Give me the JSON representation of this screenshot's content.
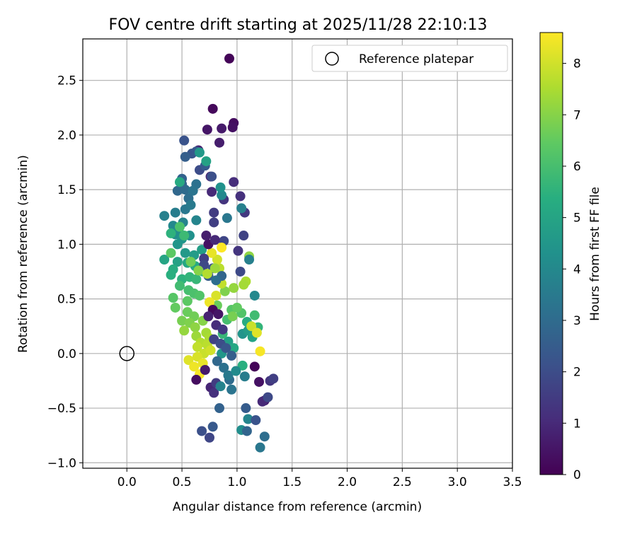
{
  "chart_data": {
    "type": "scatter",
    "title": "FOV centre drift starting at 2025/11/28 22:10:13",
    "xlabel": "Angular distance from reference (arcmin)",
    "ylabel": "Rotation from reference (arcmin)",
    "xlim": [
      -0.4,
      3.5
    ],
    "ylim": [
      -1.05,
      2.88
    ],
    "xticks": [
      "0.0",
      "0.5",
      "1.0",
      "1.5",
      "2.0",
      "2.5",
      "3.0",
      "3.5"
    ],
    "yticks": [
      "−1.0",
      "−0.5",
      "0.0",
      "0.5",
      "1.0",
      "1.5",
      "2.0",
      "2.5"
    ],
    "xtick_values": [
      0.0,
      0.5,
      1.0,
      1.5,
      2.0,
      2.5,
      3.0,
      3.5
    ],
    "ytick_values": [
      -1.0,
      -0.5,
      0.0,
      0.5,
      1.0,
      1.5,
      2.0,
      2.5
    ],
    "grid": true,
    "legend": {
      "placement": "top-right",
      "entries": [
        "Reference platepar"
      ]
    },
    "reference_point": {
      "x": 0.0,
      "y": 0.0
    },
    "colorbar": {
      "label": "Hours from first FF file",
      "colormap": "viridis",
      "range": [
        0,
        8.6
      ],
      "ticks": [
        "0",
        "1",
        "2",
        "3",
        "4",
        "5",
        "6",
        "7",
        "8"
      ],
      "tick_values": [
        0,
        1,
        2,
        3,
        4,
        5,
        6,
        7,
        8
      ]
    },
    "points": [
      {
        "x": 0.93,
        "y": 2.7,
        "c": 0.1
      },
      {
        "x": 0.78,
        "y": 2.24,
        "c": 0.2
      },
      {
        "x": 0.97,
        "y": 2.11,
        "c": 0.3
      },
      {
        "x": 0.96,
        "y": 2.07,
        "c": 0.4
      },
      {
        "x": 0.73,
        "y": 2.05,
        "c": 0.5
      },
      {
        "x": 0.86,
        "y": 2.06,
        "c": 0.6
      },
      {
        "x": 0.84,
        "y": 1.93,
        "c": 0.7
      },
      {
        "x": 0.65,
        "y": 1.86,
        "c": 0.8
      },
      {
        "x": 0.76,
        "y": 1.62,
        "c": 0.9
      },
      {
        "x": 0.77,
        "y": 1.48,
        "c": 1.0
      },
      {
        "x": 0.97,
        "y": 1.57,
        "c": 1.1
      },
      {
        "x": 1.03,
        "y": 1.44,
        "c": 1.2
      },
      {
        "x": 0.88,
        "y": 1.41,
        "c": 1.3
      },
      {
        "x": 1.07,
        "y": 1.29,
        "c": 1.4
      },
      {
        "x": 0.79,
        "y": 1.29,
        "c": 1.5
      },
      {
        "x": 0.79,
        "y": 1.2,
        "c": 1.6
      },
      {
        "x": 1.06,
        "y": 1.08,
        "c": 1.7
      },
      {
        "x": 0.88,
        "y": 1.03,
        "c": 1.8
      },
      {
        "x": 1.03,
        "y": 0.75,
        "c": 1.9
      },
      {
        "x": 0.66,
        "y": 1.68,
        "c": 2.0
      },
      {
        "x": 0.77,
        "y": 1.62,
        "c": 2.1
      },
      {
        "x": 0.52,
        "y": 1.95,
        "c": 2.2
      },
      {
        "x": 0.59,
        "y": 1.83,
        "c": 2.3
      },
      {
        "x": 0.63,
        "y": 1.85,
        "c": 2.4
      },
      {
        "x": 0.71,
        "y": 1.72,
        "c": 2.5
      },
      {
        "x": 0.53,
        "y": 1.8,
        "c": 2.6
      },
      {
        "x": 0.5,
        "y": 1.6,
        "c": 2.7
      },
      {
        "x": 0.5,
        "y": 1.55,
        "c": 2.8
      },
      {
        "x": 0.46,
        "y": 1.49,
        "c": 2.9
      },
      {
        "x": 0.53,
        "y": 1.5,
        "c": 3.0
      },
      {
        "x": 0.56,
        "y": 1.42,
        "c": 3.1
      },
      {
        "x": 0.63,
        "y": 1.55,
        "c": 3.2
      },
      {
        "x": 0.6,
        "y": 1.49,
        "c": 3.3
      },
      {
        "x": 0.53,
        "y": 1.32,
        "c": 3.4
      },
      {
        "x": 0.58,
        "y": 1.36,
        "c": 3.5
      },
      {
        "x": 0.44,
        "y": 1.29,
        "c": 3.6
      },
      {
        "x": 0.34,
        "y": 1.26,
        "c": 3.7
      },
      {
        "x": 0.51,
        "y": 1.2,
        "c": 3.8
      },
      {
        "x": 0.63,
        "y": 1.22,
        "c": 3.9
      },
      {
        "x": 0.42,
        "y": 1.17,
        "c": 4.0
      },
      {
        "x": 0.47,
        "y": 1.13,
        "c": 4.1
      },
      {
        "x": 0.44,
        "y": 1.09,
        "c": 4.2
      },
      {
        "x": 0.57,
        "y": 1.08,
        "c": 4.3
      },
      {
        "x": 0.5,
        "y": 1.05,
        "c": 4.4
      },
      {
        "x": 0.46,
        "y": 1.0,
        "c": 4.5
      },
      {
        "x": 0.53,
        "y": 0.92,
        "c": 4.6
      },
      {
        "x": 0.61,
        "y": 0.9,
        "c": 4.7
      },
      {
        "x": 0.68,
        "y": 0.95,
        "c": 4.8
      },
      {
        "x": 0.46,
        "y": 0.84,
        "c": 4.9
      },
      {
        "x": 0.34,
        "y": 0.86,
        "c": 5.0
      },
      {
        "x": 0.55,
        "y": 0.83,
        "c": 5.1
      },
      {
        "x": 0.62,
        "y": 0.8,
        "c": 5.2
      },
      {
        "x": 0.42,
        "y": 0.77,
        "c": 5.3
      },
      {
        "x": 0.4,
        "y": 0.72,
        "c": 5.4
      },
      {
        "x": 0.5,
        "y": 0.68,
        "c": 5.5
      },
      {
        "x": 0.57,
        "y": 0.7,
        "c": 5.6
      },
      {
        "x": 0.63,
        "y": 0.68,
        "c": 5.7
      },
      {
        "x": 0.69,
        "y": 0.75,
        "c": 5.8
      },
      {
        "x": 0.48,
        "y": 0.62,
        "c": 5.9
      },
      {
        "x": 0.56,
        "y": 0.58,
        "c": 6.0
      },
      {
        "x": 0.61,
        "y": 0.55,
        "c": 6.1
      },
      {
        "x": 0.66,
        "y": 0.53,
        "c": 6.2
      },
      {
        "x": 0.42,
        "y": 0.51,
        "c": 6.3
      },
      {
        "x": 0.55,
        "y": 0.48,
        "c": 6.4
      },
      {
        "x": 0.44,
        "y": 0.42,
        "c": 6.5
      },
      {
        "x": 0.55,
        "y": 0.38,
        "c": 6.6
      },
      {
        "x": 0.61,
        "y": 0.34,
        "c": 6.7
      },
      {
        "x": 0.5,
        "y": 0.3,
        "c": 6.8
      },
      {
        "x": 0.57,
        "y": 0.28,
        "c": 6.9
      },
      {
        "x": 0.69,
        "y": 0.3,
        "c": 7.0
      },
      {
        "x": 0.62,
        "y": 0.24,
        "c": 7.1
      },
      {
        "x": 0.52,
        "y": 0.21,
        "c": 7.2
      },
      {
        "x": 0.63,
        "y": 0.16,
        "c": 7.3
      },
      {
        "x": 0.72,
        "y": 0.19,
        "c": 7.4
      },
      {
        "x": 0.75,
        "y": 0.14,
        "c": 7.5
      },
      {
        "x": 0.67,
        "y": 0.1,
        "c": 7.6
      },
      {
        "x": 0.73,
        "y": 0.08,
        "c": 7.7
      },
      {
        "x": 0.64,
        "y": 0.06,
        "c": 7.8
      },
      {
        "x": 0.7,
        "y": 0.0,
        "c": 7.9
      },
      {
        "x": 0.76,
        "y": 0.03,
        "c": 8.0
      },
      {
        "x": 0.64,
        "y": -0.03,
        "c": 8.1
      },
      {
        "x": 0.56,
        "y": -0.06,
        "c": 8.2
      },
      {
        "x": 0.69,
        "y": -0.09,
        "c": 8.3
      },
      {
        "x": 0.61,
        "y": -0.12,
        "c": 8.4
      },
      {
        "x": 0.66,
        "y": -0.19,
        "c": 8.5
      },
      {
        "x": 0.63,
        "y": -0.24,
        "c": 0.3
      },
      {
        "x": 0.71,
        "y": -0.15,
        "c": 0.6
      },
      {
        "x": 0.76,
        "y": -0.31,
        "c": 0.9
      },
      {
        "x": 0.79,
        "y": -0.36,
        "c": 1.2
      },
      {
        "x": 0.81,
        "y": -0.27,
        "c": 1.5
      },
      {
        "x": 0.75,
        "y": -0.77,
        "c": 1.8
      },
      {
        "x": 0.68,
        "y": -0.71,
        "c": 2.1
      },
      {
        "x": 0.78,
        "y": -0.67,
        "c": 2.4
      },
      {
        "x": 0.84,
        "y": -0.5,
        "c": 2.7
      },
      {
        "x": 0.93,
        "y": -0.24,
        "c": 3.0
      },
      {
        "x": 0.95,
        "y": -0.33,
        "c": 3.3
      },
      {
        "x": 1.07,
        "y": -0.21,
        "c": 3.6
      },
      {
        "x": 1.1,
        "y": -0.6,
        "c": 3.9
      },
      {
        "x": 1.04,
        "y": -0.7,
        "c": 4.2
      },
      {
        "x": 0.86,
        "y": 0.0,
        "c": 4.5
      },
      {
        "x": 0.92,
        "y": 0.11,
        "c": 4.8
      },
      {
        "x": 0.97,
        "y": 0.05,
        "c": 5.1
      },
      {
        "x": 1.05,
        "y": -0.11,
        "c": 5.4
      },
      {
        "x": 0.87,
        "y": 0.18,
        "c": 5.7
      },
      {
        "x": 0.91,
        "y": 0.31,
        "c": 6.0
      },
      {
        "x": 0.95,
        "y": 0.4,
        "c": 6.3
      },
      {
        "x": 0.82,
        "y": 0.44,
        "c": 6.6
      },
      {
        "x": 0.89,
        "y": 0.57,
        "c": 6.9
      },
      {
        "x": 0.97,
        "y": 0.6,
        "c": 7.2
      },
      {
        "x": 1.08,
        "y": 0.66,
        "c": 7.5
      },
      {
        "x": 0.86,
        "y": 0.64,
        "c": 7.8
      },
      {
        "x": 0.81,
        "y": 0.53,
        "c": 8.1
      },
      {
        "x": 0.75,
        "y": 0.47,
        "c": 8.4
      },
      {
        "x": 0.78,
        "y": 0.4,
        "c": 0.2
      },
      {
        "x": 0.83,
        "y": 0.36,
        "c": 0.5
      },
      {
        "x": 0.74,
        "y": 0.34,
        "c": 0.8
      },
      {
        "x": 0.81,
        "y": 0.26,
        "c": 1.1
      },
      {
        "x": 0.87,
        "y": 0.22,
        "c": 1.4
      },
      {
        "x": 0.79,
        "y": 0.13,
        "c": 1.7
      },
      {
        "x": 0.85,
        "y": 0.09,
        "c": 2.0
      },
      {
        "x": 0.9,
        "y": 0.05,
        "c": 2.3
      },
      {
        "x": 0.95,
        "y": -0.02,
        "c": 2.6
      },
      {
        "x": 0.82,
        "y": -0.07,
        "c": 2.9
      },
      {
        "x": 0.88,
        "y": -0.13,
        "c": 3.2
      },
      {
        "x": 0.92,
        "y": -0.2,
        "c": 3.5
      },
      {
        "x": 0.85,
        "y": -0.3,
        "c": 3.8
      },
      {
        "x": 0.99,
        "y": -0.16,
        "c": 4.1
      },
      {
        "x": 1.05,
        "y": 0.18,
        "c": 4.4
      },
      {
        "x": 1.1,
        "y": 0.21,
        "c": 4.7
      },
      {
        "x": 1.14,
        "y": 0.15,
        "c": 5.0
      },
      {
        "x": 1.09,
        "y": 0.29,
        "c": 5.3
      },
      {
        "x": 1.19,
        "y": 0.24,
        "c": 5.6
      },
      {
        "x": 1.16,
        "y": 0.35,
        "c": 5.9
      },
      {
        "x": 1.04,
        "y": 0.37,
        "c": 6.2
      },
      {
        "x": 1.0,
        "y": 0.42,
        "c": 6.5
      },
      {
        "x": 0.96,
        "y": 0.34,
        "c": 6.8
      },
      {
        "x": 1.11,
        "y": 0.89,
        "c": 7.1
      },
      {
        "x": 1.06,
        "y": 0.63,
        "c": 7.4
      },
      {
        "x": 0.84,
        "y": 0.78,
        "c": 7.7
      },
      {
        "x": 0.82,
        "y": 0.86,
        "c": 8.0
      },
      {
        "x": 0.77,
        "y": 0.92,
        "c": 8.3
      },
      {
        "x": 0.86,
        "y": 0.97,
        "c": 8.6
      },
      {
        "x": 0.74,
        "y": 1.0,
        "c": 0.4
      },
      {
        "x": 0.72,
        "y": 1.08,
        "c": 0.7
      },
      {
        "x": 0.8,
        "y": 1.04,
        "c": 1.0
      },
      {
        "x": 1.01,
        "y": 0.94,
        "c": 1.3
      },
      {
        "x": 0.7,
        "y": 0.87,
        "c": 1.6
      },
      {
        "x": 0.7,
        "y": 0.81,
        "c": 1.9
      },
      {
        "x": 0.78,
        "y": 0.78,
        "c": 2.2
      },
      {
        "x": 0.74,
        "y": 0.71,
        "c": 2.5
      },
      {
        "x": 0.86,
        "y": 0.71,
        "c": 2.8
      },
      {
        "x": 0.81,
        "y": 0.67,
        "c": 3.1
      },
      {
        "x": 0.91,
        "y": 1.24,
        "c": 3.4
      },
      {
        "x": 1.04,
        "y": 1.33,
        "c": 3.7
      },
      {
        "x": 0.86,
        "y": 1.45,
        "c": 4.0
      },
      {
        "x": 0.85,
        "y": 1.52,
        "c": 4.3
      },
      {
        "x": 0.66,
        "y": 1.84,
        "c": 4.6
      },
      {
        "x": 0.72,
        "y": 1.76,
        "c": 4.9
      },
      {
        "x": 0.48,
        "y": 1.57,
        "c": 5.2
      },
      {
        "x": 0.4,
        "y": 1.1,
        "c": 5.5
      },
      {
        "x": 0.52,
        "y": 1.08,
        "c": 5.8
      },
      {
        "x": 0.48,
        "y": 1.16,
        "c": 6.1
      },
      {
        "x": 0.4,
        "y": 0.92,
        "c": 6.4
      },
      {
        "x": 0.58,
        "y": 0.84,
        "c": 6.7
      },
      {
        "x": 0.65,
        "y": 0.76,
        "c": 7.0
      },
      {
        "x": 0.8,
        "y": 0.78,
        "c": 7.3
      },
      {
        "x": 0.73,
        "y": 0.73,
        "c": 7.6
      },
      {
        "x": 1.13,
        "y": 0.25,
        "c": 7.9
      },
      {
        "x": 1.18,
        "y": 0.19,
        "c": 8.2
      },
      {
        "x": 1.21,
        "y": 0.02,
        "c": 8.5
      },
      {
        "x": 1.16,
        "y": -0.12,
        "c": 0.1
      },
      {
        "x": 1.2,
        "y": -0.26,
        "c": 0.4
      },
      {
        "x": 1.25,
        "y": -0.43,
        "c": 0.7
      },
      {
        "x": 1.23,
        "y": -0.44,
        "c": 1.0
      },
      {
        "x": 1.3,
        "y": -0.25,
        "c": 1.3
      },
      {
        "x": 1.33,
        "y": -0.23,
        "c": 1.6
      },
      {
        "x": 1.28,
        "y": -0.4,
        "c": 1.9
      },
      {
        "x": 1.17,
        "y": -0.61,
        "c": 2.2
      },
      {
        "x": 1.08,
        "y": -0.5,
        "c": 2.5
      },
      {
        "x": 1.09,
        "y": -0.71,
        "c": 2.8
      },
      {
        "x": 1.25,
        "y": -0.76,
        "c": 3.1
      },
      {
        "x": 1.21,
        "y": -0.86,
        "c": 3.4
      },
      {
        "x": 1.11,
        "y": 0.86,
        "c": 3.7
      },
      {
        "x": 1.16,
        "y": 0.53,
        "c": 4.0
      }
    ]
  }
}
